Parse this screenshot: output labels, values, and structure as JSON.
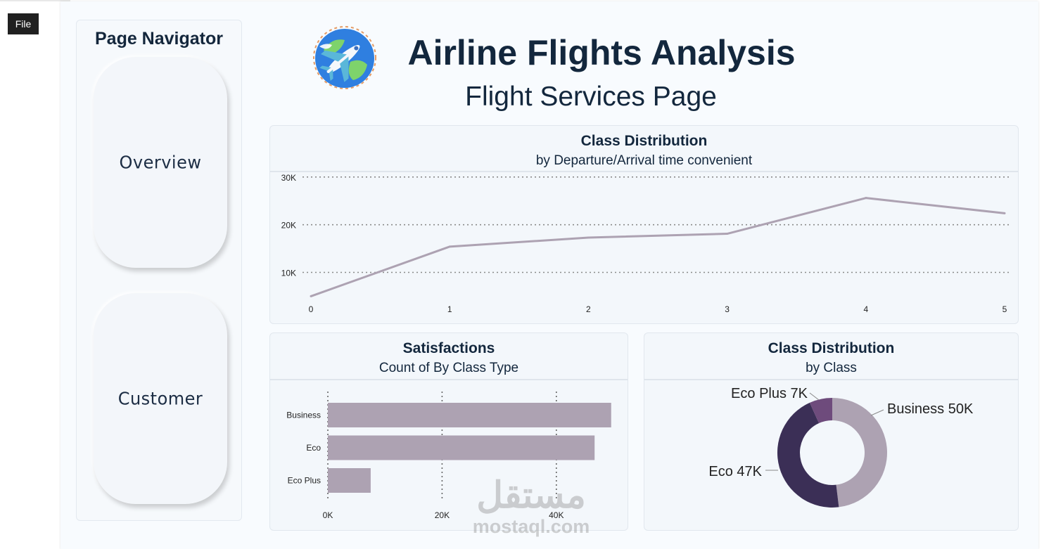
{
  "toolbar": {
    "file_label": "File"
  },
  "navigator": {
    "title": "Page Navigator",
    "buttons": [
      {
        "label": "Overview"
      },
      {
        "label": "Customer"
      }
    ]
  },
  "header": {
    "title": "Airline Flights Analysis",
    "subtitle": "Flight Services Page"
  },
  "watermark": {
    "text_ar": "مستقل",
    "text_en": "mostaql.com"
  },
  "colors": {
    "accent": "#ada2b2",
    "eco": "#3b2f56",
    "eco_plus": "#6e4b7c",
    "title": "#13273d"
  },
  "chart_data": [
    {
      "id": "line",
      "type": "line",
      "title": "Class Distribution",
      "subtitle": "by Departure/Arrival time convenient",
      "x": [
        0,
        1,
        2,
        3,
        4,
        5
      ],
      "xticks": [
        "0",
        "1",
        "2",
        "3",
        "4",
        "5"
      ],
      "y": [
        5000,
        15400,
        17300,
        18100,
        25600,
        22400
      ],
      "ylim": [
        3000,
        31000
      ],
      "yticks": [
        10000,
        20000,
        30000
      ],
      "ytick_labels": [
        "10K",
        "20K",
        "30K"
      ],
      "grid": true
    },
    {
      "id": "bar",
      "type": "bar",
      "orientation": "horizontal",
      "title": "Satisfactions",
      "subtitle": "Count of By Class Type",
      "categories": [
        "Business",
        "Eco",
        "Eco Plus"
      ],
      "values": [
        49600,
        46700,
        7500
      ],
      "xlim": [
        0,
        50000
      ],
      "xticks": [
        0,
        20000,
        40000
      ],
      "xtick_labels": [
        "0K",
        "20K",
        "40K"
      ],
      "grid": true
    },
    {
      "id": "donut",
      "type": "pie",
      "style": "donut",
      "title": "Class Distribution",
      "subtitle": "by Class",
      "slices": [
        {
          "name": "Business",
          "value": 50000,
          "label": "Business 50K",
          "color": "#ada2b2"
        },
        {
          "name": "Eco",
          "value": 47000,
          "label": "Eco 47K",
          "color": "#3b2f56"
        },
        {
          "name": "Eco Plus",
          "value": 7000,
          "label": "Eco Plus 7K",
          "color": "#6e4b7c"
        }
      ]
    }
  ]
}
